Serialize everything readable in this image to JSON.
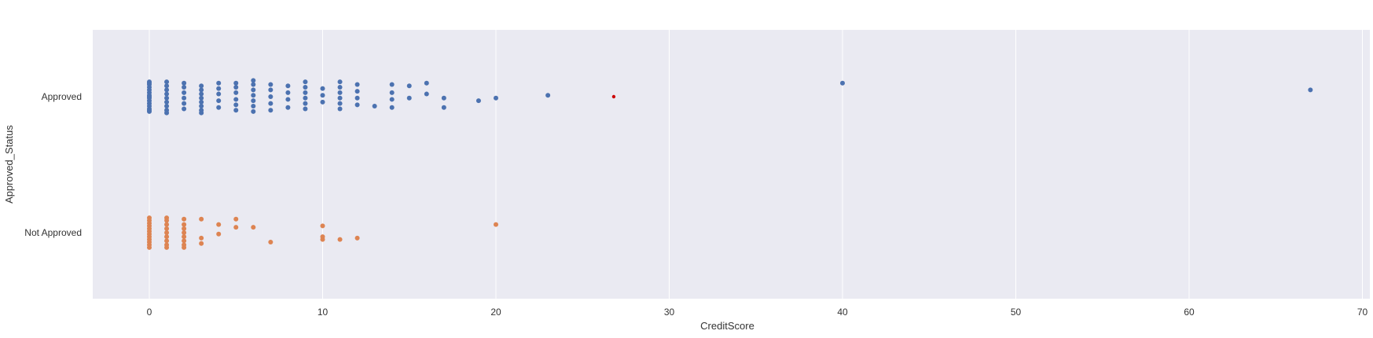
{
  "chart_data": {
    "type": "scatter",
    "subtype": "strip",
    "orientation": "horizontal",
    "xlabel": "CreditScore",
    "ylabel": "Approved_Status",
    "xlim": [
      -3.3,
      70.3
    ],
    "xticks": [
      0,
      10,
      20,
      30,
      40,
      50,
      60,
      70
    ],
    "categories": [
      "Approved",
      "Not Approved"
    ],
    "grid": true,
    "background": "#eaeaf2",
    "grid_color": "#ffffff",
    "series": [
      {
        "category": "Approved",
        "color": "#4c72b0",
        "points": [
          [
            0,
            -0.11
          ],
          [
            0,
            -0.09
          ],
          [
            0,
            -0.07
          ],
          [
            0,
            -0.05
          ],
          [
            0,
            -0.03
          ],
          [
            0,
            -0.01
          ],
          [
            0,
            0.01
          ],
          [
            0,
            0.03
          ],
          [
            0,
            0.05
          ],
          [
            0,
            0.07
          ],
          [
            0,
            0.09
          ],
          [
            0,
            0.11
          ],
          [
            0,
            -0.1
          ],
          [
            0,
            0.1
          ],
          [
            0,
            0.0
          ],
          [
            1,
            -0.1
          ],
          [
            1,
            -0.07
          ],
          [
            1,
            -0.04
          ],
          [
            1,
            -0.01
          ],
          [
            1,
            0.02
          ],
          [
            1,
            0.05
          ],
          [
            1,
            0.08
          ],
          [
            1,
            0.11
          ],
          [
            1,
            -0.12
          ],
          [
            2,
            -0.09
          ],
          [
            2,
            -0.05
          ],
          [
            2,
            -0.01
          ],
          [
            2,
            0.03
          ],
          [
            2,
            0.07
          ],
          [
            2,
            0.1
          ],
          [
            3,
            -0.1
          ],
          [
            3,
            -0.07
          ],
          [
            3,
            -0.04
          ],
          [
            3,
            -0.01
          ],
          [
            3,
            0.02
          ],
          [
            3,
            0.05
          ],
          [
            3,
            0.08
          ],
          [
            3,
            -0.12
          ],
          [
            4,
            -0.08
          ],
          [
            4,
            -0.03
          ],
          [
            4,
            0.02
          ],
          [
            4,
            0.06
          ],
          [
            4,
            0.1
          ],
          [
            5,
            -0.1
          ],
          [
            5,
            -0.06
          ],
          [
            5,
            -0.02
          ],
          [
            5,
            0.03
          ],
          [
            5,
            0.07
          ],
          [
            5,
            0.1
          ],
          [
            6,
            -0.11
          ],
          [
            6,
            -0.07
          ],
          [
            6,
            -0.03
          ],
          [
            6,
            0.01
          ],
          [
            6,
            0.05
          ],
          [
            6,
            0.09
          ],
          [
            6,
            0.12
          ],
          [
            7,
            -0.1
          ],
          [
            7,
            -0.05
          ],
          [
            7,
            0.0
          ],
          [
            7,
            0.05
          ],
          [
            7,
            0.09
          ],
          [
            8,
            -0.08
          ],
          [
            8,
            -0.02
          ],
          [
            8,
            0.03
          ],
          [
            8,
            0.08
          ],
          [
            9,
            -0.09
          ],
          [
            9,
            -0.05
          ],
          [
            9,
            -0.01
          ],
          [
            9,
            0.03
          ],
          [
            9,
            0.07
          ],
          [
            9,
            0.11
          ],
          [
            10,
            -0.04
          ],
          [
            10,
            0.01
          ],
          [
            10,
            0.06
          ],
          [
            11,
            -0.09
          ],
          [
            11,
            -0.05
          ],
          [
            11,
            -0.01
          ],
          [
            11,
            0.03
          ],
          [
            11,
            0.07
          ],
          [
            11,
            0.11
          ],
          [
            12,
            -0.06
          ],
          [
            12,
            -0.01
          ],
          [
            12,
            0.04
          ],
          [
            12,
            0.09
          ],
          [
            13,
            -0.07
          ],
          [
            14,
            -0.08
          ],
          [
            14,
            -0.02
          ],
          [
            14,
            0.03
          ],
          [
            14,
            0.09
          ],
          [
            15,
            -0.01
          ],
          [
            15,
            0.08
          ],
          [
            16,
            0.02
          ],
          [
            16,
            0.1
          ],
          [
            17,
            -0.08
          ],
          [
            17,
            -0.01
          ],
          [
            19,
            -0.03
          ],
          [
            20,
            -0.01
          ],
          [
            23,
            0.01
          ],
          [
            40,
            0.1
          ],
          [
            67,
            0.05
          ]
        ]
      },
      {
        "category": "Not Approved",
        "color": "#dd8452",
        "points": [
          [
            0,
            -0.09
          ],
          [
            0,
            -0.07
          ],
          [
            0,
            -0.05
          ],
          [
            0,
            -0.03
          ],
          [
            0,
            -0.01
          ],
          [
            0,
            0.01
          ],
          [
            0,
            0.03
          ],
          [
            0,
            0.05
          ],
          [
            0,
            0.07
          ],
          [
            0,
            0.09
          ],
          [
            0,
            0.11
          ],
          [
            0,
            -0.11
          ],
          [
            1,
            -0.09
          ],
          [
            1,
            -0.06
          ],
          [
            1,
            -0.03
          ],
          [
            1,
            0.0
          ],
          [
            1,
            0.03
          ],
          [
            1,
            0.06
          ],
          [
            1,
            0.09
          ],
          [
            1,
            0.11
          ],
          [
            1,
            -0.11
          ],
          [
            2,
            -0.09
          ],
          [
            2,
            -0.06
          ],
          [
            2,
            -0.03
          ],
          [
            2,
            0.0
          ],
          [
            2,
            0.03
          ],
          [
            2,
            0.06
          ],
          [
            2,
            0.1
          ],
          [
            2,
            -0.11
          ],
          [
            3,
            -0.04
          ],
          [
            3,
            -0.08
          ],
          [
            3,
            0.1
          ],
          [
            4,
            0.06
          ],
          [
            4,
            -0.01
          ],
          [
            5,
            0.1
          ],
          [
            5,
            0.04
          ],
          [
            6,
            0.04
          ],
          [
            7,
            -0.07
          ],
          [
            10,
            0.05
          ],
          [
            10,
            -0.03
          ],
          [
            10,
            -0.05
          ],
          [
            11,
            -0.05
          ],
          [
            12,
            -0.04
          ],
          [
            20,
            0.06
          ]
        ]
      },
      {
        "category": "Approved",
        "color": "#cc0000",
        "points": [
          [
            26.8,
            0.0
          ]
        ]
      }
    ]
  }
}
